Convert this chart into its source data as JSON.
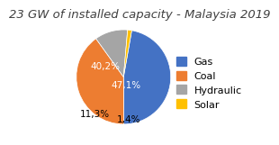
{
  "title": "23 GW of installed capacity - Malaysia 2019",
  "title_fontsize": 9.5,
  "title_style": "italic",
  "slices": [
    47.1,
    40.2,
    11.3,
    1.4
  ],
  "labels": [
    "47,1%",
    "40,2%",
    "11,3%",
    "1,4%"
  ],
  "legend_labels": [
    "Gas",
    "Coal",
    "Hydraulic",
    "Solar"
  ],
  "colors": [
    "#4472C4",
    "#ED7D31",
    "#A5A5A5",
    "#FFC000"
  ],
  "startangle": 80,
  "background_color": "#FFFFFF",
  "label_fontsize": 7.5,
  "legend_fontsize": 8
}
